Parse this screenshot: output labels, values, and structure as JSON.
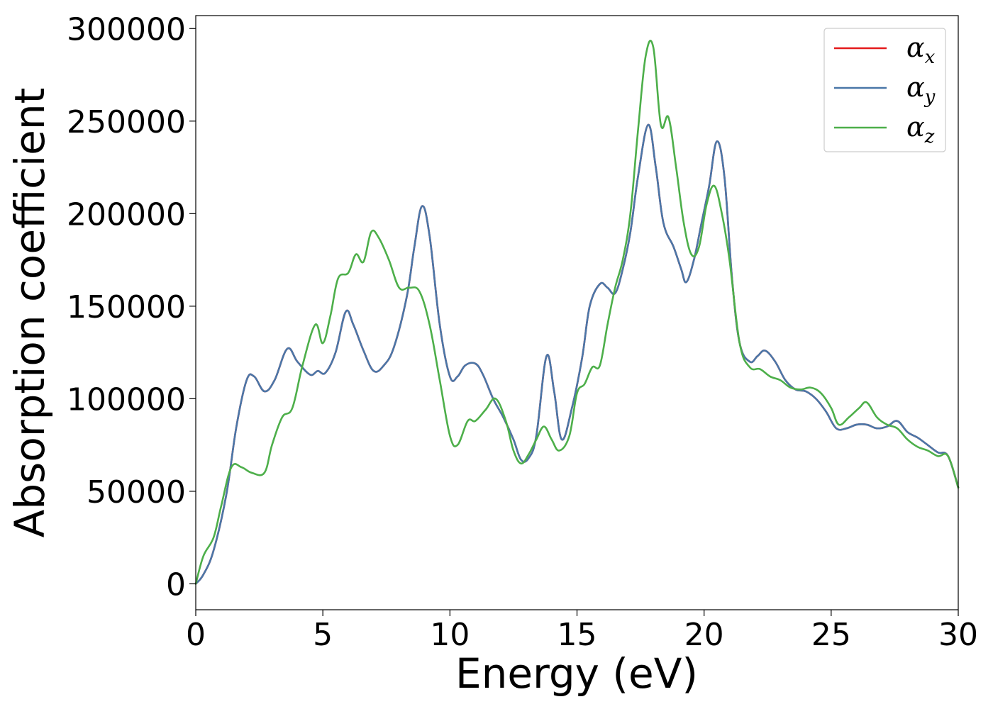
{
  "chart_data": {
    "type": "line",
    "title": "",
    "xlabel": "Energy (eV)",
    "ylabel": "Absorption coefficient",
    "xlim": [
      0,
      30
    ],
    "ylim": [
      -14000,
      307000
    ],
    "xticks": [
      0,
      5,
      10,
      15,
      20,
      25,
      30
    ],
    "xtick_labels": [
      "0",
      "5",
      "10",
      "15",
      "20",
      "25",
      "30"
    ],
    "yticks": [
      0,
      50000,
      100000,
      150000,
      200000,
      250000,
      300000
    ],
    "ytick_labels": [
      "0",
      "50000",
      "100000",
      "150000",
      "200000",
      "250000",
      "300000"
    ],
    "grid": false,
    "legend_position": "top-right",
    "series": [
      {
        "name": "α",
        "subscript": "x",
        "color": "#e41a1c",
        "x": [
          0,
          0.3,
          0.7,
          1.2,
          1.6,
          2.0,
          2.3,
          2.7,
          3.1,
          3.6,
          4.0,
          4.5,
          4.8,
          5.1,
          5.5,
          5.9,
          6.2,
          6.6,
          7.0,
          7.4,
          7.8,
          8.3,
          8.6,
          8.9,
          9.2,
          9.6,
          10.0,
          10.3,
          10.6,
          11.0,
          11.3,
          11.7,
          12.1,
          12.5,
          12.8,
          13.1,
          13.4,
          13.8,
          14.1,
          14.4,
          14.8,
          15.2,
          15.5,
          15.9,
          16.2,
          16.5,
          16.8,
          17.1,
          17.4,
          17.8,
          18.1,
          18.4,
          18.8,
          19.1,
          19.3,
          19.6,
          19.9,
          20.2,
          20.5,
          20.8,
          21.1,
          21.4,
          21.8,
          22.1,
          22.4,
          22.8,
          23.2,
          23.6,
          24.0,
          24.4,
          24.8,
          25.2,
          25.6,
          26.0,
          26.4,
          26.8,
          27.2,
          27.6,
          28.0,
          28.4,
          28.8,
          29.2,
          29.6,
          30.0
        ],
        "values": [
          0,
          5000,
          18000,
          48000,
          85000,
          110000,
          112000,
          104000,
          110000,
          127000,
          120000,
          113000,
          115000,
          114000,
          125000,
          147000,
          140000,
          126000,
          115000,
          118000,
          128000,
          155000,
          182000,
          204000,
          188000,
          140000,
          112000,
          112000,
          118000,
          119000,
          113000,
          100000,
          90000,
          78000,
          67000,
          68000,
          80000,
          123000,
          104000,
          78000,
          95000,
          122000,
          150000,
          162000,
          160000,
          157000,
          170000,
          190000,
          220000,
          248000,
          225000,
          195000,
          182000,
          170000,
          163000,
          175000,
          195000,
          215000,
          239000,
          220000,
          165000,
          130000,
          120000,
          123000,
          126000,
          120000,
          110000,
          105000,
          104000,
          100000,
          93000,
          84000,
          84000,
          86000,
          86000,
          84000,
          85000,
          88000,
          82000,
          79000,
          75000,
          71000,
          69000,
          52000
        ]
      },
      {
        "name": "α",
        "subscript": "y",
        "color": "#4a77a8",
        "x": [
          0,
          0.3,
          0.7,
          1.2,
          1.6,
          2.0,
          2.3,
          2.7,
          3.1,
          3.6,
          4.0,
          4.5,
          4.8,
          5.1,
          5.5,
          5.9,
          6.2,
          6.6,
          7.0,
          7.4,
          7.8,
          8.3,
          8.6,
          8.9,
          9.2,
          9.6,
          10.0,
          10.3,
          10.6,
          11.0,
          11.3,
          11.7,
          12.1,
          12.5,
          12.8,
          13.1,
          13.4,
          13.8,
          14.1,
          14.4,
          14.8,
          15.2,
          15.5,
          15.9,
          16.2,
          16.5,
          16.8,
          17.1,
          17.4,
          17.8,
          18.1,
          18.4,
          18.8,
          19.1,
          19.3,
          19.6,
          19.9,
          20.2,
          20.5,
          20.8,
          21.1,
          21.4,
          21.8,
          22.1,
          22.4,
          22.8,
          23.2,
          23.6,
          24.0,
          24.4,
          24.8,
          25.2,
          25.6,
          26.0,
          26.4,
          26.8,
          27.2,
          27.6,
          28.0,
          28.4,
          28.8,
          29.2,
          29.6,
          30.0
        ],
        "values": [
          0,
          5000,
          18000,
          48000,
          85000,
          110000,
          112000,
          104000,
          110000,
          127000,
          120000,
          113000,
          115000,
          114000,
          125000,
          147000,
          140000,
          126000,
          115000,
          118000,
          128000,
          155000,
          182000,
          204000,
          188000,
          140000,
          112000,
          112000,
          118000,
          119000,
          113000,
          100000,
          90000,
          78000,
          67000,
          68000,
          80000,
          123000,
          104000,
          78000,
          95000,
          122000,
          150000,
          162000,
          160000,
          157000,
          170000,
          190000,
          220000,
          248000,
          225000,
          195000,
          182000,
          170000,
          163000,
          175000,
          195000,
          215000,
          239000,
          220000,
          165000,
          130000,
          120000,
          123000,
          126000,
          120000,
          110000,
          105000,
          104000,
          100000,
          93000,
          84000,
          84000,
          86000,
          86000,
          84000,
          85000,
          88000,
          82000,
          79000,
          75000,
          71000,
          69000,
          52000
        ]
      },
      {
        "name": "α",
        "subscript": "z",
        "color": "#4daf4a",
        "x": [
          0,
          0.3,
          0.7,
          1.0,
          1.4,
          1.8,
          2.2,
          2.7,
          3.0,
          3.4,
          3.8,
          4.2,
          4.7,
          5.0,
          5.3,
          5.6,
          6.0,
          6.3,
          6.6,
          6.9,
          7.2,
          7.6,
          8.0,
          8.4,
          8.8,
          9.2,
          9.6,
          10.0,
          10.3,
          10.7,
          11.0,
          11.4,
          11.8,
          12.2,
          12.5,
          12.8,
          13.1,
          13.4,
          13.7,
          14.0,
          14.3,
          14.7,
          15.0,
          15.3,
          15.6,
          15.9,
          16.2,
          16.5,
          16.8,
          17.1,
          17.4,
          17.7,
          18.0,
          18.3,
          18.6,
          18.9,
          19.2,
          19.5,
          19.8,
          20.1,
          20.4,
          20.7,
          21.0,
          21.4,
          21.8,
          22.2,
          22.6,
          23.0,
          23.4,
          23.8,
          24.2,
          24.6,
          25.0,
          25.3,
          25.7,
          26.1,
          26.4,
          26.8,
          27.2,
          27.6,
          28.0,
          28.4,
          28.8,
          29.2,
          29.6,
          30.0
        ],
        "values": [
          0,
          15000,
          25000,
          42000,
          63000,
          63000,
          60000,
          60000,
          75000,
          90000,
          95000,
          118000,
          140000,
          130000,
          145000,
          165000,
          168000,
          178000,
          174000,
          190000,
          187000,
          175000,
          160000,
          160000,
          158000,
          140000,
          110000,
          80000,
          75000,
          88000,
          88000,
          94000,
          100000,
          88000,
          72000,
          65000,
          70000,
          78000,
          85000,
          78000,
          72000,
          80000,
          103000,
          108000,
          117000,
          118000,
          140000,
          160000,
          175000,
          200000,
          245000,
          285000,
          290000,
          248000,
          252000,
          225000,
          195000,
          178000,
          182000,
          205000,
          215000,
          200000,
          175000,
          130000,
          117000,
          116000,
          112000,
          110000,
          106000,
          105000,
          106000,
          103000,
          95000,
          86000,
          90000,
          95000,
          98000,
          90000,
          86000,
          84000,
          78000,
          74000,
          72000,
          69000,
          69000,
          52000
        ]
      }
    ]
  }
}
